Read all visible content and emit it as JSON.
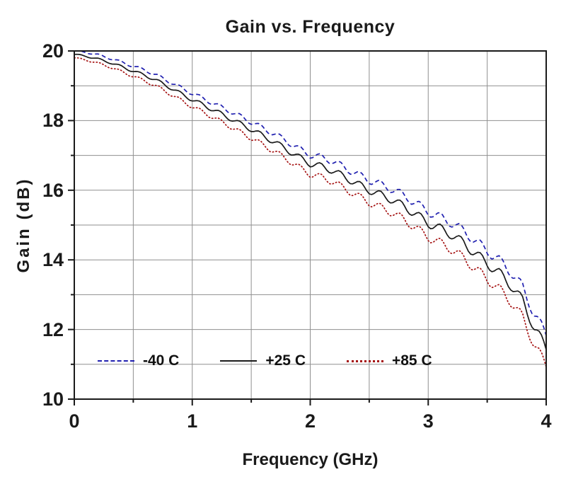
{
  "page": {
    "background": "#ffffff"
  },
  "chart_data": {
    "type": "line",
    "title": "Gain vs. Frequency",
    "xlabel": "Frequency (GHz)",
    "ylabel": "Gain (dB)",
    "xlim": [
      0,
      4
    ],
    "ylim": [
      10,
      20
    ],
    "x_ticks": [
      0,
      1,
      2,
      3,
      4
    ],
    "x_gridlines": [
      0.5,
      1,
      1.5,
      2,
      2.5,
      3,
      3.5
    ],
    "y_ticks": [
      10,
      12,
      14,
      16,
      18,
      20
    ],
    "y_gridlines": [
      11,
      12,
      13,
      14,
      15,
      16,
      17,
      18,
      19
    ],
    "grid": true,
    "legend_position": "inside-bottom-left",
    "axis_color": "#1a1a1a",
    "grid_color": "#8f8f8f",
    "x": [
      0,
      0.1,
      0.2,
      0.3,
      0.4,
      0.5,
      0.6,
      0.7,
      0.8,
      0.9,
      1.0,
      1.1,
      1.2,
      1.3,
      1.4,
      1.5,
      1.6,
      1.7,
      1.8,
      1.9,
      2.0,
      2.1,
      2.2,
      2.3,
      2.4,
      2.5,
      2.6,
      2.7,
      2.8,
      2.9,
      3.0,
      3.1,
      3.2,
      3.3,
      3.4,
      3.5,
      3.6,
      3.7,
      3.8,
      3.9,
      4.0
    ],
    "series": [
      {
        "name": "-40 C",
        "color": "#2020b0",
        "style": "dashed",
        "values": [
          20.0,
          19.96,
          19.89,
          19.79,
          19.68,
          19.56,
          19.45,
          19.3,
          19.13,
          18.95,
          18.78,
          18.62,
          18.46,
          18.3,
          18.13,
          17.96,
          17.78,
          17.61,
          17.41,
          17.2,
          17.01,
          16.94,
          16.82,
          16.63,
          16.46,
          16.29,
          16.16,
          16.02,
          15.83,
          15.62,
          15.38,
          15.23,
          15.06,
          14.83,
          14.54,
          14.26,
          13.99,
          13.66,
          13.21,
          12.44,
          11.85
        ]
      },
      {
        "name": "+25 C",
        "color": "#1a1a1a",
        "style": "solid",
        "values": [
          19.9,
          19.85,
          19.77,
          19.67,
          19.55,
          19.42,
          19.3,
          19.15,
          18.97,
          18.78,
          18.6,
          18.44,
          18.27,
          18.1,
          17.92,
          17.75,
          17.56,
          17.38,
          17.17,
          16.96,
          16.76,
          16.68,
          16.55,
          16.36,
          16.18,
          16.0,
          15.86,
          15.72,
          15.52,
          15.3,
          15.05,
          14.9,
          14.72,
          14.48,
          14.18,
          13.9,
          13.62,
          13.28,
          12.82,
          12.05,
          11.45
        ]
      },
      {
        "name": "+85 C",
        "color": "#a51212",
        "style": "dotted",
        "values": [
          19.8,
          19.74,
          19.65,
          19.54,
          19.41,
          19.27,
          19.14,
          18.98,
          18.79,
          18.59,
          18.4,
          18.23,
          18.05,
          17.87,
          17.68,
          17.5,
          17.3,
          17.11,
          16.89,
          16.67,
          16.46,
          16.37,
          16.23,
          16.03,
          15.84,
          15.65,
          15.5,
          15.35,
          15.14,
          14.91,
          14.65,
          14.49,
          14.3,
          14.05,
          13.74,
          13.45,
          13.16,
          12.81,
          12.34,
          11.56,
          10.95
        ]
      }
    ],
    "ripple": {
      "amplitude_base": 0.02,
      "amplitude_slope": 0.035,
      "period": 0.17
    }
  }
}
